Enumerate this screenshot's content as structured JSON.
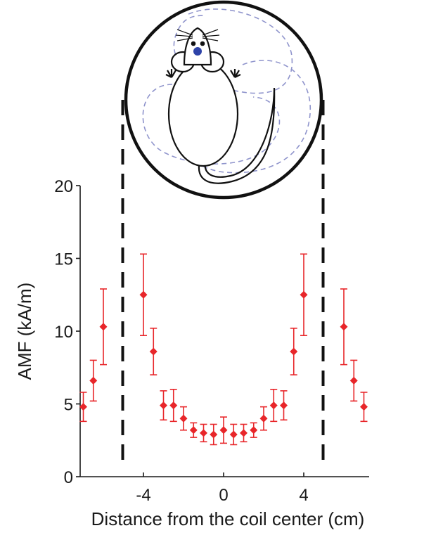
{
  "chart_data": {
    "type": "scatter",
    "xlabel": "Distance from the coil center (cm)",
    "ylabel": "AMF (kA/m)",
    "xlim": [
      -7.2,
      7.5
    ],
    "ylim": [
      0,
      20
    ],
    "x_ticks": [
      -4,
      0,
      4
    ],
    "y_ticks": [
      0,
      5,
      10,
      15,
      20
    ],
    "grid": false,
    "legend": "none",
    "marker": "diamond",
    "color": "#e8262a",
    "coil_edges": [
      -5,
      5
    ],
    "series": [
      {
        "x": [
          -7,
          -6.5,
          -6,
          -4,
          -3.5,
          -3,
          -2.5,
          -2,
          -1.5,
          -1,
          -0.5,
          0,
          0.5,
          1,
          1.5,
          2,
          2.5,
          3,
          3.5,
          4,
          6,
          6.5,
          7
        ],
        "y": [
          4.8,
          6.6,
          10.3,
          12.5,
          8.6,
          4.9,
          4.9,
          4.0,
          3.2,
          3.0,
          2.9,
          3.2,
          2.9,
          3.0,
          3.2,
          4.0,
          4.9,
          4.9,
          8.6,
          12.5,
          10.3,
          6.6,
          4.8
        ],
        "err": [
          1.0,
          1.4,
          2.6,
          2.8,
          1.6,
          1.0,
          1.1,
          0.8,
          0.5,
          0.6,
          0.7,
          0.9,
          0.7,
          0.6,
          0.5,
          0.8,
          1.1,
          1.0,
          1.6,
          2.8,
          2.6,
          1.4,
          1.0
        ]
      }
    ]
  },
  "illustration": {
    "subject": "mouse-in-coil",
    "path_color": "#8f94cc",
    "dot_color": "#2e43a8"
  }
}
